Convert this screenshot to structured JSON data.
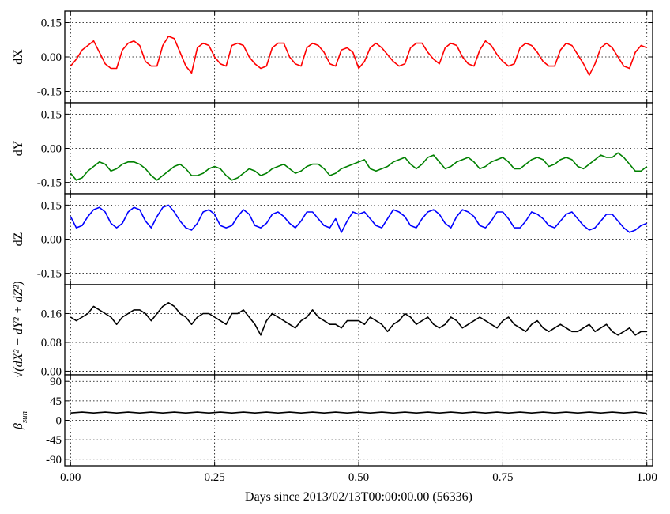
{
  "chart_data": {
    "type": "line",
    "xlabel": "Days since 2013/02/13T00:00:00.00 (56336)",
    "xlim": [
      -0.01,
      1.01
    ],
    "x_ticks": [
      0.0,
      0.25,
      0.5,
      0.75,
      1.0
    ],
    "x_tick_labels": [
      "0.00",
      "0.25",
      "0.50",
      "0.75",
      "1.00"
    ],
    "grid": true,
    "grid_style": "dotted",
    "panels": [
      {
        "id": "dX",
        "ylabel": "dX",
        "color": "#ff0000",
        "ylim": [
          -0.2,
          0.2
        ],
        "y_ticks": [
          0.15,
          0.0,
          -0.15
        ],
        "y_tick_labels": [
          "0.15",
          "0.00",
          "-0.15"
        ],
        "x": [
          0.0,
          0.01,
          0.02,
          0.03,
          0.04,
          0.05,
          0.06,
          0.07,
          0.08,
          0.09,
          0.1,
          0.11,
          0.12,
          0.13,
          0.14,
          0.15,
          0.16,
          0.17,
          0.18,
          0.19,
          0.2,
          0.21,
          0.22,
          0.23,
          0.24,
          0.25,
          0.26,
          0.27,
          0.28,
          0.29,
          0.3,
          0.31,
          0.32,
          0.33,
          0.34,
          0.35,
          0.36,
          0.37,
          0.38,
          0.39,
          0.4,
          0.41,
          0.42,
          0.43,
          0.44,
          0.45,
          0.46,
          0.47,
          0.48,
          0.49,
          0.5,
          0.51,
          0.52,
          0.53,
          0.54,
          0.55,
          0.56,
          0.57,
          0.58,
          0.59,
          0.6,
          0.61,
          0.62,
          0.63,
          0.64,
          0.65,
          0.66,
          0.67,
          0.68,
          0.69,
          0.7,
          0.71,
          0.72,
          0.73,
          0.74,
          0.75,
          0.76,
          0.77,
          0.78,
          0.79,
          0.8,
          0.81,
          0.82,
          0.83,
          0.84,
          0.85,
          0.86,
          0.87,
          0.88,
          0.89,
          0.9,
          0.91,
          0.92,
          0.93,
          0.94,
          0.95,
          0.96,
          0.97,
          0.98,
          0.99,
          1.0
        ],
        "values": [
          -0.04,
          -0.01,
          0.03,
          0.05,
          0.07,
          0.02,
          -0.03,
          -0.05,
          -0.05,
          0.03,
          0.06,
          0.07,
          0.05,
          -0.02,
          -0.04,
          -0.04,
          0.05,
          0.09,
          0.08,
          0.02,
          -0.04,
          -0.07,
          0.04,
          0.06,
          0.05,
          0.0,
          -0.03,
          -0.04,
          0.05,
          0.06,
          0.05,
          0.0,
          -0.03,
          -0.05,
          -0.04,
          0.04,
          0.06,
          0.06,
          0.0,
          -0.03,
          -0.04,
          0.04,
          0.06,
          0.05,
          0.02,
          -0.03,
          -0.04,
          0.03,
          0.04,
          0.02,
          -0.05,
          -0.02,
          0.04,
          0.06,
          0.04,
          0.01,
          -0.02,
          -0.04,
          -0.03,
          0.04,
          0.06,
          0.06,
          0.02,
          -0.01,
          -0.03,
          0.04,
          0.06,
          0.05,
          0.0,
          -0.03,
          -0.04,
          0.03,
          0.07,
          0.05,
          0.01,
          -0.02,
          -0.04,
          -0.03,
          0.04,
          0.06,
          0.05,
          0.02,
          -0.02,
          -0.04,
          -0.04,
          0.03,
          0.06,
          0.05,
          0.01,
          -0.03,
          -0.08,
          -0.03,
          0.04,
          0.06,
          0.04,
          0.0,
          -0.04,
          -0.05,
          0.02,
          0.05,
          0.04
        ]
      },
      {
        "id": "dY",
        "ylabel": "dY",
        "color": "#008000",
        "ylim": [
          -0.2,
          0.2
        ],
        "y_ticks": [
          0.15,
          0.0,
          -0.15
        ],
        "y_tick_labels": [
          "0.15",
          "0.00",
          "-0.15"
        ],
        "x": [
          0.0,
          0.01,
          0.02,
          0.03,
          0.04,
          0.05,
          0.06,
          0.07,
          0.08,
          0.09,
          0.1,
          0.11,
          0.12,
          0.13,
          0.14,
          0.15,
          0.16,
          0.17,
          0.18,
          0.19,
          0.2,
          0.21,
          0.22,
          0.23,
          0.24,
          0.25,
          0.26,
          0.27,
          0.28,
          0.29,
          0.3,
          0.31,
          0.32,
          0.33,
          0.34,
          0.35,
          0.36,
          0.37,
          0.38,
          0.39,
          0.4,
          0.41,
          0.42,
          0.43,
          0.44,
          0.45,
          0.46,
          0.47,
          0.48,
          0.49,
          0.5,
          0.51,
          0.52,
          0.53,
          0.54,
          0.55,
          0.56,
          0.57,
          0.58,
          0.59,
          0.6,
          0.61,
          0.62,
          0.63,
          0.64,
          0.65,
          0.66,
          0.67,
          0.68,
          0.69,
          0.7,
          0.71,
          0.72,
          0.73,
          0.74,
          0.75,
          0.76,
          0.77,
          0.78,
          0.79,
          0.8,
          0.81,
          0.82,
          0.83,
          0.84,
          0.85,
          0.86,
          0.87,
          0.88,
          0.89,
          0.9,
          0.91,
          0.92,
          0.93,
          0.94,
          0.95,
          0.96,
          0.97,
          0.98,
          0.99,
          1.0
        ],
        "values": [
          -0.11,
          -0.14,
          -0.13,
          -0.1,
          -0.08,
          -0.06,
          -0.07,
          -0.1,
          -0.09,
          -0.07,
          -0.06,
          -0.06,
          -0.07,
          -0.09,
          -0.12,
          -0.14,
          -0.12,
          -0.1,
          -0.08,
          -0.07,
          -0.09,
          -0.12,
          -0.12,
          -0.11,
          -0.09,
          -0.08,
          -0.09,
          -0.12,
          -0.14,
          -0.13,
          -0.11,
          -0.09,
          -0.1,
          -0.12,
          -0.11,
          -0.09,
          -0.08,
          -0.07,
          -0.09,
          -0.11,
          -0.1,
          -0.08,
          -0.07,
          -0.07,
          -0.09,
          -0.12,
          -0.11,
          -0.09,
          -0.08,
          -0.07,
          -0.06,
          -0.05,
          -0.09,
          -0.1,
          -0.09,
          -0.08,
          -0.06,
          -0.05,
          -0.04,
          -0.07,
          -0.09,
          -0.07,
          -0.04,
          -0.03,
          -0.06,
          -0.09,
          -0.08,
          -0.06,
          -0.05,
          -0.04,
          -0.06,
          -0.09,
          -0.08,
          -0.06,
          -0.05,
          -0.04,
          -0.06,
          -0.09,
          -0.09,
          -0.07,
          -0.05,
          -0.04,
          -0.05,
          -0.08,
          -0.07,
          -0.05,
          -0.04,
          -0.05,
          -0.08,
          -0.09,
          -0.07,
          -0.05,
          -0.03,
          -0.04,
          -0.04,
          -0.02,
          -0.04,
          -0.07,
          -0.1,
          -0.1,
          -0.08
        ]
      },
      {
        "id": "dZ",
        "ylabel": "dZ",
        "color": "#0000ff",
        "ylim": [
          -0.2,
          0.2
        ],
        "y_ticks": [
          0.15,
          0.0,
          -0.15
        ],
        "y_tick_labels": [
          "0.15",
          "0.00",
          "-0.15"
        ],
        "x": [
          0.0,
          0.01,
          0.02,
          0.03,
          0.04,
          0.05,
          0.06,
          0.07,
          0.08,
          0.09,
          0.1,
          0.11,
          0.12,
          0.13,
          0.14,
          0.15,
          0.16,
          0.17,
          0.18,
          0.19,
          0.2,
          0.21,
          0.22,
          0.23,
          0.24,
          0.25,
          0.26,
          0.27,
          0.28,
          0.29,
          0.3,
          0.31,
          0.32,
          0.33,
          0.34,
          0.35,
          0.36,
          0.37,
          0.38,
          0.39,
          0.4,
          0.41,
          0.42,
          0.43,
          0.44,
          0.45,
          0.46,
          0.47,
          0.48,
          0.49,
          0.5,
          0.51,
          0.52,
          0.53,
          0.54,
          0.55,
          0.56,
          0.57,
          0.58,
          0.59,
          0.6,
          0.61,
          0.62,
          0.63,
          0.64,
          0.65,
          0.66,
          0.67,
          0.68,
          0.69,
          0.7,
          0.71,
          0.72,
          0.73,
          0.74,
          0.75,
          0.76,
          0.77,
          0.78,
          0.79,
          0.8,
          0.81,
          0.82,
          0.83,
          0.84,
          0.85,
          0.86,
          0.87,
          0.88,
          0.89,
          0.9,
          0.91,
          0.92,
          0.93,
          0.94,
          0.95,
          0.96,
          0.97,
          0.98,
          0.99,
          1.0
        ],
        "values": [
          0.1,
          0.05,
          0.06,
          0.1,
          0.13,
          0.14,
          0.12,
          0.07,
          0.05,
          0.07,
          0.12,
          0.14,
          0.13,
          0.08,
          0.05,
          0.1,
          0.14,
          0.15,
          0.12,
          0.08,
          0.05,
          0.04,
          0.07,
          0.12,
          0.13,
          0.11,
          0.06,
          0.05,
          0.06,
          0.1,
          0.13,
          0.11,
          0.06,
          0.05,
          0.07,
          0.11,
          0.12,
          0.1,
          0.07,
          0.05,
          0.08,
          0.12,
          0.12,
          0.09,
          0.06,
          0.05,
          0.09,
          0.03,
          0.08,
          0.12,
          0.11,
          0.12,
          0.09,
          0.06,
          0.05,
          0.09,
          0.13,
          0.12,
          0.1,
          0.06,
          0.05,
          0.09,
          0.12,
          0.13,
          0.11,
          0.07,
          0.05,
          0.1,
          0.13,
          0.12,
          0.1,
          0.06,
          0.05,
          0.08,
          0.12,
          0.12,
          0.09,
          0.05,
          0.05,
          0.08,
          0.12,
          0.11,
          0.09,
          0.06,
          0.05,
          0.08,
          0.11,
          0.12,
          0.09,
          0.06,
          0.04,
          0.05,
          0.08,
          0.11,
          0.11,
          0.08,
          0.05,
          0.03,
          0.04,
          0.06,
          0.07
        ]
      },
      {
        "id": "dR",
        "ylabel": "√(dX² + dY² + dZ²)",
        "color": "#000000",
        "ylim": [
          -0.01,
          0.24
        ],
        "y_ticks": [
          0.16,
          0.08,
          0.0
        ],
        "y_tick_labels": [
          "0.16",
          "0.08",
          "0.00"
        ],
        "x": [
          0.0,
          0.01,
          0.02,
          0.03,
          0.04,
          0.05,
          0.06,
          0.07,
          0.08,
          0.09,
          0.1,
          0.11,
          0.12,
          0.13,
          0.14,
          0.15,
          0.16,
          0.17,
          0.18,
          0.19,
          0.2,
          0.21,
          0.22,
          0.23,
          0.24,
          0.25,
          0.26,
          0.27,
          0.28,
          0.29,
          0.3,
          0.31,
          0.32,
          0.33,
          0.34,
          0.35,
          0.36,
          0.37,
          0.38,
          0.39,
          0.4,
          0.41,
          0.42,
          0.43,
          0.44,
          0.45,
          0.46,
          0.47,
          0.48,
          0.49,
          0.5,
          0.51,
          0.52,
          0.53,
          0.54,
          0.55,
          0.56,
          0.57,
          0.58,
          0.59,
          0.6,
          0.61,
          0.62,
          0.63,
          0.64,
          0.65,
          0.66,
          0.67,
          0.68,
          0.69,
          0.7,
          0.71,
          0.72,
          0.73,
          0.74,
          0.75,
          0.76,
          0.77,
          0.78,
          0.79,
          0.8,
          0.81,
          0.82,
          0.83,
          0.84,
          0.85,
          0.86,
          0.87,
          0.88,
          0.89,
          0.9,
          0.91,
          0.92,
          0.93,
          0.94,
          0.95,
          0.96,
          0.97,
          0.98,
          0.99,
          1.0
        ],
        "values": [
          0.15,
          0.14,
          0.15,
          0.16,
          0.18,
          0.17,
          0.16,
          0.15,
          0.13,
          0.15,
          0.16,
          0.17,
          0.17,
          0.16,
          0.14,
          0.16,
          0.18,
          0.19,
          0.18,
          0.16,
          0.15,
          0.13,
          0.15,
          0.16,
          0.16,
          0.15,
          0.14,
          0.13,
          0.16,
          0.16,
          0.17,
          0.15,
          0.13,
          0.1,
          0.14,
          0.16,
          0.15,
          0.14,
          0.13,
          0.12,
          0.14,
          0.15,
          0.17,
          0.15,
          0.14,
          0.13,
          0.13,
          0.12,
          0.14,
          0.14,
          0.14,
          0.13,
          0.15,
          0.14,
          0.13,
          0.11,
          0.13,
          0.14,
          0.16,
          0.15,
          0.13,
          0.14,
          0.15,
          0.13,
          0.12,
          0.13,
          0.15,
          0.14,
          0.12,
          0.13,
          0.14,
          0.15,
          0.14,
          0.13,
          0.12,
          0.14,
          0.15,
          0.13,
          0.12,
          0.11,
          0.13,
          0.14,
          0.12,
          0.11,
          0.12,
          0.13,
          0.12,
          0.11,
          0.11,
          0.12,
          0.13,
          0.11,
          0.12,
          0.13,
          0.11,
          0.1,
          0.11,
          0.12,
          0.1,
          0.11,
          0.11
        ]
      },
      {
        "id": "beta",
        "ylabel": "β_sun",
        "color": "#000000",
        "ylim": [
          -105,
          105
        ],
        "y_ticks": [
          90,
          45,
          0,
          -45,
          -90
        ],
        "y_tick_labels": [
          "90",
          "45",
          "0",
          "-45",
          "-90"
        ],
        "x": [
          0.0,
          0.02,
          0.04,
          0.06,
          0.08,
          0.1,
          0.12,
          0.14,
          0.16,
          0.18,
          0.2,
          0.22,
          0.24,
          0.26,
          0.28,
          0.3,
          0.32,
          0.34,
          0.36,
          0.38,
          0.4,
          0.42,
          0.44,
          0.46,
          0.48,
          0.5,
          0.52,
          0.54,
          0.56,
          0.58,
          0.6,
          0.62,
          0.64,
          0.66,
          0.68,
          0.7,
          0.72,
          0.74,
          0.76,
          0.78,
          0.8,
          0.82,
          0.84,
          0.86,
          0.88,
          0.9,
          0.92,
          0.94,
          0.96,
          0.98,
          1.0
        ],
        "values": [
          17,
          19,
          17,
          19,
          17,
          19,
          17,
          19,
          17,
          19,
          17,
          19,
          17,
          19,
          17,
          19,
          17,
          19,
          17,
          19,
          17,
          19,
          17,
          19,
          17,
          19,
          17,
          19,
          17,
          19,
          17,
          19,
          17,
          19,
          17,
          19,
          17,
          19,
          17,
          19,
          17,
          19,
          17,
          19,
          17,
          19,
          17,
          19,
          17,
          19,
          16
        ]
      }
    ]
  }
}
